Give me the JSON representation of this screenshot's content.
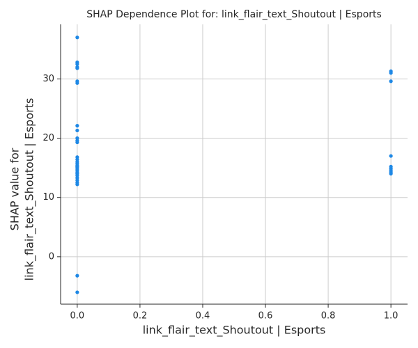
{
  "chart_data": {
    "type": "scatter",
    "title": "SHAP Dependence Plot for: link_flair_text_Shoutout | Esports",
    "xlabel": "link_flair_text_Shoutout | Esports",
    "ylabel": [
      "SHAP value for",
      "link_flair_text_Shoutout | Esports"
    ],
    "x": [
      0,
      0,
      0,
      0,
      0,
      0,
      0,
      0,
      0,
      0,
      0,
      0,
      0,
      0,
      0,
      0,
      0,
      0,
      0,
      0,
      0,
      0,
      0,
      0,
      0,
      0,
      0,
      0,
      0,
      0,
      1,
      1,
      1,
      1,
      1,
      1,
      1,
      1,
      1
    ],
    "values": [
      37,
      32.8,
      32.5,
      32,
      31.8,
      29.6,
      29.3,
      22.1,
      21.3,
      20,
      19.6,
      19.3,
      16.8,
      16.4,
      16,
      15.7,
      15.4,
      15.1,
      14.8,
      14.5,
      14.2,
      14,
      13.7,
      13.3,
      12.9,
      12.5,
      12.2,
      -3.2,
      -6,
      15.2,
      31.3,
      31,
      29.6,
      17,
      15.2,
      14.9,
      14.6,
      14.3,
      14
    ],
    "color": "#1e88e5",
    "xlim": [
      -0.053,
      1.053
    ],
    "ylim": [
      -8,
      39.2
    ],
    "xticks": [
      {
        "value": 0,
        "label": "0.0"
      },
      {
        "value": 0.2,
        "label": "0.2"
      },
      {
        "value": 0.4,
        "label": "0.4"
      },
      {
        "value": 0.6,
        "label": "0.6"
      },
      {
        "value": 0.8,
        "label": "0.8"
      },
      {
        "value": 1,
        "label": "1.0"
      }
    ],
    "yticks": [
      0,
      10,
      20,
      30
    ],
    "grid": true
  }
}
